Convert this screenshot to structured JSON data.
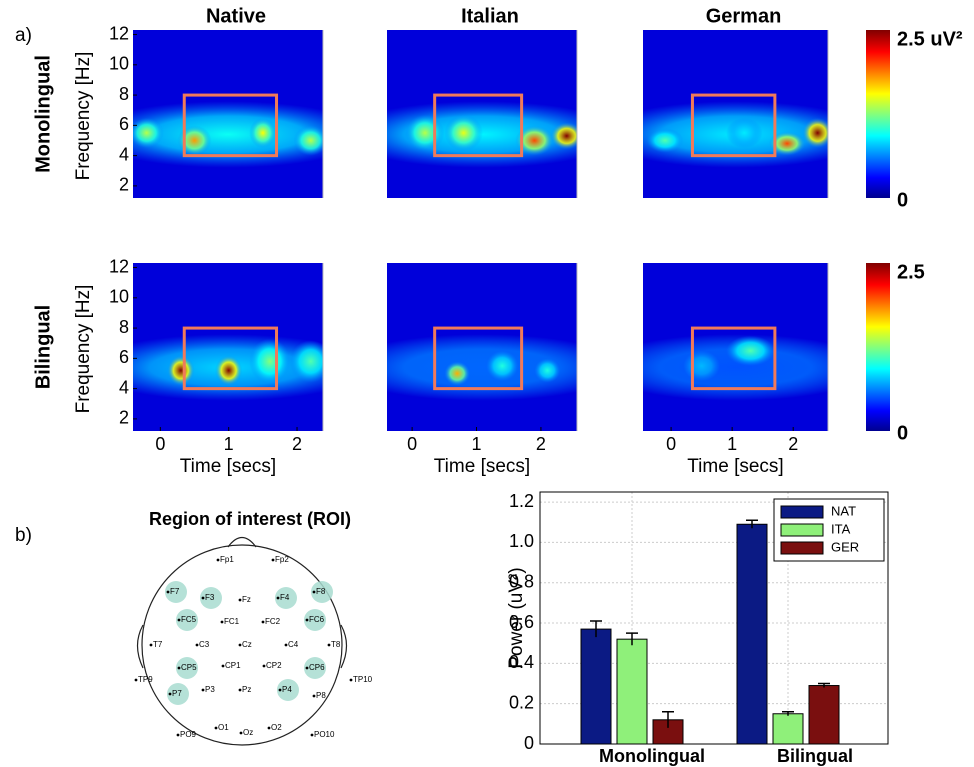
{
  "panel_labels": [
    "a)",
    "b)"
  ],
  "heatmaps": {
    "columns": [
      {
        "title": "Native",
        "xlim": [
          -0.4,
          2.38
        ]
      },
      {
        "title": "Italian",
        "xlim": [
          -0.39,
          2.56
        ]
      },
      {
        "title": "German",
        "xlim": [
          -0.46,
          2.57
        ]
      }
    ],
    "rows": [
      "Monolingual",
      "Bilingual"
    ],
    "y_label": "Frequency [Hz]",
    "x_label": "Time [secs]",
    "ylim": [
      1.2,
      12.3
    ],
    "yticks": [
      2,
      4,
      6,
      8,
      10,
      12
    ],
    "xticks": [
      0,
      1,
      2
    ],
    "roi_box": {
      "t": [
        0.35,
        1.7
      ],
      "f": [
        4,
        8
      ]
    },
    "colorbars": [
      {
        "max_label": "2.5 uV²",
        "min_label": "0"
      },
      {
        "max_label": "2.5",
        "min_label": "0"
      }
    ]
  },
  "roi": {
    "title": "Region of interest (ROI)",
    "electrodes": [
      {
        "label": "Fp1",
        "roi": false
      },
      {
        "label": "Fp2",
        "roi": false
      },
      {
        "label": "F7",
        "roi": true
      },
      {
        "label": "F3",
        "roi": true
      },
      {
        "label": "Fz",
        "roi": false
      },
      {
        "label": "F4",
        "roi": true
      },
      {
        "label": "F8",
        "roi": true
      },
      {
        "label": "FC5",
        "roi": true
      },
      {
        "label": "FC1",
        "roi": false
      },
      {
        "label": "FC2",
        "roi": false
      },
      {
        "label": "FC6",
        "roi": true
      },
      {
        "label": "T7",
        "roi": false
      },
      {
        "label": "C3",
        "roi": false
      },
      {
        "label": "Cz",
        "roi": false
      },
      {
        "label": "C4",
        "roi": false
      },
      {
        "label": "T8",
        "roi": false
      },
      {
        "label": "CP5",
        "roi": true
      },
      {
        "label": "CP1",
        "roi": false
      },
      {
        "label": "CP2",
        "roi": false
      },
      {
        "label": "CP6",
        "roi": true
      },
      {
        "label": "TP9",
        "roi": false
      },
      {
        "label": "TP10",
        "roi": false
      },
      {
        "label": "P7",
        "roi": true
      },
      {
        "label": "P3",
        "roi": false
      },
      {
        "label": "Pz",
        "roi": false
      },
      {
        "label": "P4",
        "roi": true
      },
      {
        "label": "P8",
        "roi": false
      },
      {
        "label": "O1",
        "roi": false
      },
      {
        "label": "Oz",
        "roi": false
      },
      {
        "label": "O2",
        "roi": false
      },
      {
        "label": "PO9",
        "roi": false
      },
      {
        "label": "PO10",
        "roi": false
      }
    ]
  },
  "chart_data": {
    "type": "bar",
    "y_label": "Power (uV²)",
    "categories": [
      "Monolingual",
      "Bilingual"
    ],
    "series": [
      {
        "name": "NAT",
        "color": "#0b1a84",
        "values": [
          0.57,
          1.09
        ],
        "errors": [
          0.04,
          0.02
        ]
      },
      {
        "name": "ITA",
        "color": "#8ff07a",
        "values": [
          0.52,
          0.15
        ],
        "errors": [
          0.03,
          0.01
        ]
      },
      {
        "name": "GER",
        "color": "#7a0f0f",
        "values": [
          0.12,
          0.29
        ],
        "errors": [
          0.04,
          0.01
        ]
      }
    ],
    "ylim": [
      0,
      1.25
    ],
    "yticks": [
      0,
      0.2,
      0.4,
      0.6,
      0.8,
      {
        "value": 1,
        "label": "1.0"
      },
      1.2
    ],
    "grid": true,
    "legend": "top-right"
  }
}
